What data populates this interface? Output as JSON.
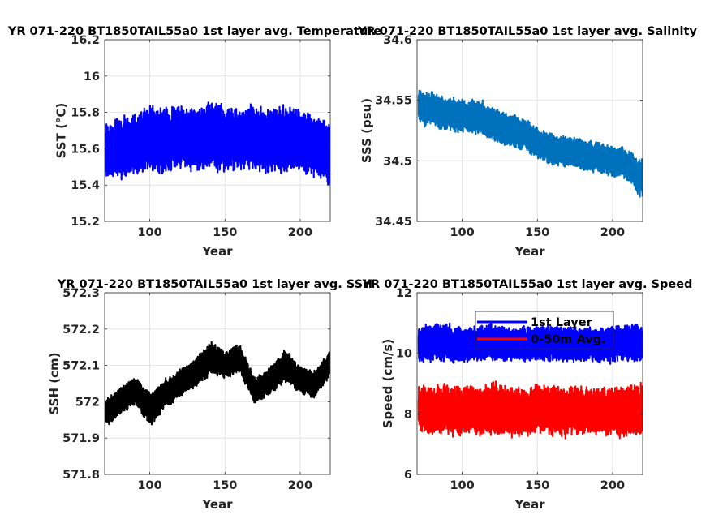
{
  "chart_data": [
    {
      "type": "line",
      "title": "YR 071-220 BT1850TAIL55a0 1st layer avg. Temperature",
      "xlabel": "Year",
      "ylabel": "SST (°C)",
      "xlim": [
        70,
        220
      ],
      "ylim": [
        15.2,
        16.2
      ],
      "xticks": [
        "100",
        "150",
        "200"
      ],
      "yticks": [
        "15.2",
        "15.4",
        "15.6",
        "15.8",
        "16",
        "16.2"
      ],
      "grid": true,
      "series": [
        {
          "color": "#0000ff",
          "x": [
            71,
            80,
            90,
            100,
            110,
            120,
            130,
            140,
            150,
            160,
            170,
            180,
            190,
            200,
            210,
            220
          ],
          "center": [
            15.58,
            15.6,
            15.62,
            15.66,
            15.65,
            15.66,
            15.65,
            15.67,
            15.65,
            15.66,
            15.66,
            15.64,
            15.66,
            15.64,
            15.62,
            15.58
          ],
          "halfrange": [
            0.22,
            0.22,
            0.22,
            0.24,
            0.23,
            0.23,
            0.23,
            0.24,
            0.23,
            0.23,
            0.23,
            0.23,
            0.24,
            0.23,
            0.22,
            0.24
          ]
        }
      ]
    },
    {
      "type": "line",
      "title": "YR 071-220 BT1850TAIL55a0 1st layer avg. Salinity",
      "xlabel": "Year",
      "ylabel": "SSS (psu)",
      "xlim": [
        70,
        220
      ],
      "ylim": [
        34.45,
        34.6
      ],
      "xticks": [
        "100",
        "150",
        "200"
      ],
      "yticks": [
        "34.45",
        "34.5",
        "34.55",
        "34.6"
      ],
      "grid": true,
      "series": [
        {
          "color": "#0072bd",
          "x": [
            71,
            80,
            90,
            100,
            110,
            120,
            130,
            140,
            150,
            160,
            170,
            180,
            190,
            200,
            210,
            220
          ],
          "center": [
            34.545,
            34.543,
            34.538,
            34.537,
            34.537,
            34.532,
            34.525,
            34.522,
            34.515,
            34.51,
            34.508,
            34.505,
            34.503,
            34.5,
            34.497,
            34.485
          ],
          "halfrange": [
            0.018,
            0.018,
            0.018,
            0.018,
            0.018,
            0.018,
            0.018,
            0.017,
            0.017,
            0.017,
            0.017,
            0.017,
            0.017,
            0.017,
            0.017,
            0.02
          ]
        }
      ]
    },
    {
      "type": "line",
      "title": "YR 071-220 BT1850TAIL55a0 1st layer avg. SSH",
      "xlabel": "Year",
      "ylabel": "SSH (cm)",
      "xlim": [
        70,
        220
      ],
      "ylim": [
        571.8,
        572.3
      ],
      "xticks": [
        "100",
        "150",
        "200"
      ],
      "yticks": [
        "571.8",
        "571.9",
        "572",
        "572.1",
        "572.2",
        "572.3"
      ],
      "grid": true,
      "series": [
        {
          "color": "#000000",
          "x": [
            71,
            80,
            90,
            100,
            110,
            120,
            130,
            140,
            150,
            160,
            170,
            180,
            190,
            200,
            210,
            220
          ],
          "center": [
            571.97,
            572.0,
            572.03,
            571.98,
            572.02,
            572.05,
            572.08,
            572.12,
            572.1,
            572.12,
            572.03,
            572.06,
            572.1,
            572.06,
            572.05,
            572.11
          ],
          "halfrange": [
            0.05,
            0.05,
            0.05,
            0.06,
            0.05,
            0.05,
            0.05,
            0.06,
            0.05,
            0.05,
            0.05,
            0.05,
            0.06,
            0.05,
            0.05,
            0.05
          ]
        }
      ]
    },
    {
      "type": "line",
      "title": "YR 071-220 BT1850TAIL55a0 1st layer avg. Speed",
      "xlabel": "Year",
      "ylabel": "Speed (cm/s)",
      "xlim": [
        70,
        220
      ],
      "ylim": [
        6,
        12
      ],
      "xticks": [
        "100",
        "150",
        "200"
      ],
      "yticks": [
        "6",
        "8",
        "10",
        "12"
      ],
      "grid": true,
      "legend_position": "top-center",
      "series": [
        {
          "name": "1st Layer",
          "color": "#0000ff",
          "x": [
            71,
            80,
            90,
            100,
            110,
            120,
            130,
            140,
            150,
            160,
            170,
            180,
            190,
            200,
            210,
            220
          ],
          "center": [
            10.3,
            10.35,
            10.35,
            10.3,
            10.3,
            10.35,
            10.3,
            10.3,
            10.3,
            10.35,
            10.3,
            10.3,
            10.3,
            10.3,
            10.35,
            10.35
          ],
          "halfrange": [
            0.75,
            0.8,
            0.8,
            0.75,
            0.75,
            0.8,
            0.75,
            0.75,
            0.75,
            0.8,
            0.75,
            0.75,
            0.75,
            0.75,
            0.8,
            0.8
          ]
        },
        {
          "name": "0-50m Avg.",
          "color": "#ff0000",
          "x": [
            71,
            80,
            90,
            100,
            110,
            120,
            130,
            140,
            150,
            160,
            170,
            180,
            190,
            200,
            210,
            220
          ],
          "center": [
            8.1,
            8.15,
            8.15,
            8.1,
            8.1,
            8.15,
            8.1,
            8.1,
            8.1,
            8.15,
            8.1,
            8.1,
            8.1,
            8.1,
            8.15,
            8.15
          ],
          "halfrange": [
            1.05,
            1.1,
            1.1,
            1.05,
            1.05,
            1.1,
            1.05,
            1.05,
            1.05,
            1.1,
            1.05,
            1.05,
            1.05,
            1.05,
            1.1,
            1.1
          ]
        }
      ]
    }
  ]
}
